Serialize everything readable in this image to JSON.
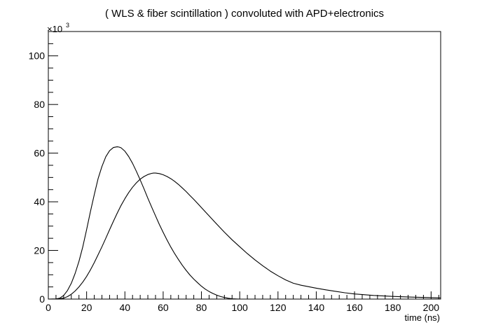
{
  "chart_data": {
    "type": "line",
    "title": "( WLS & fiber scintillation ) convoluted with APD+electronics",
    "xlabel": "time (ns)",
    "ylabel": "",
    "xlim": [
      0,
      205
    ],
    "ylim": [
      0,
      110
    ],
    "y_multiplier_label": "×10",
    "y_multiplier_exponent": "3",
    "x_ticks": [
      0,
      20,
      40,
      60,
      80,
      100,
      120,
      140,
      160,
      180,
      200
    ],
    "y_ticks": [
      0,
      20,
      40,
      60,
      80,
      100
    ],
    "grid": false,
    "legend": "none",
    "series": [
      {
        "x": [
          0,
          4,
          6,
          8,
          10,
          12,
          14,
          16,
          18,
          20,
          22,
          24,
          26,
          28,
          30,
          32,
          34,
          36,
          37,
          38,
          40,
          42,
          44,
          46,
          48,
          50,
          52,
          54,
          56,
          58,
          60,
          62,
          64,
          66,
          68,
          70,
          72,
          74,
          76,
          78,
          80,
          82,
          84,
          86,
          88,
          90,
          92,
          94,
          96,
          98,
          100,
          102
        ],
        "values": [
          0,
          0.05,
          0.4,
          1.5,
          3.5,
          6.5,
          10.5,
          15.5,
          21.5,
          28.5,
          36,
          43,
          49.5,
          54.5,
          58.5,
          61,
          62.3,
          62.6,
          62.5,
          62.2,
          60.8,
          58.6,
          55.8,
          52.5,
          49,
          45.3,
          41.5,
          37.8,
          34.2,
          30.7,
          27.4,
          24.3,
          21.4,
          18.7,
          16.2,
          13.9,
          11.8,
          9.9,
          8.2,
          6.7,
          5.3,
          4.1,
          3.1,
          2.3,
          1.6,
          1.05,
          0.65,
          0.35,
          0.15,
          0.05,
          0.01,
          0
        ]
      },
      {
        "x": [
          0,
          5,
          8,
          10,
          12,
          14,
          16,
          18,
          20,
          22,
          24,
          26,
          28,
          30,
          32,
          34,
          36,
          38,
          40,
          42,
          44,
          46,
          48,
          50,
          52,
          54,
          55,
          56,
          58,
          60,
          62,
          64,
          66,
          68,
          70,
          72,
          74,
          76,
          78,
          80,
          84,
          88,
          92,
          96,
          100,
          104,
          108,
          112,
          116,
          120,
          124,
          128,
          132,
          136,
          140,
          145,
          150,
          155,
          160,
          170,
          180,
          190,
          200,
          205
        ],
        "values": [
          0,
          0.05,
          0.4,
          1,
          2,
          3.3,
          5,
          7,
          9.3,
          12,
          15,
          18.2,
          21.5,
          25,
          28.5,
          32,
          35.3,
          38.5,
          41.3,
          43.8,
          46,
          47.8,
          49.3,
          50.4,
          51.2,
          51.7,
          51.8,
          51.8,
          51.6,
          51.1,
          50.4,
          49.5,
          48.4,
          47.1,
          45.7,
          44.2,
          42.6,
          41,
          39.3,
          37.6,
          34.2,
          30.8,
          27.5,
          24.4,
          21.5,
          18.7,
          16.1,
          13.7,
          11.5,
          9.6,
          7.9,
          6.5,
          5.7,
          5.1,
          4.5,
          3.8,
          3.2,
          2.6,
          2.1,
          1.5,
          1.1,
          0.8,
          0.6,
          0.5
        ]
      }
    ]
  }
}
